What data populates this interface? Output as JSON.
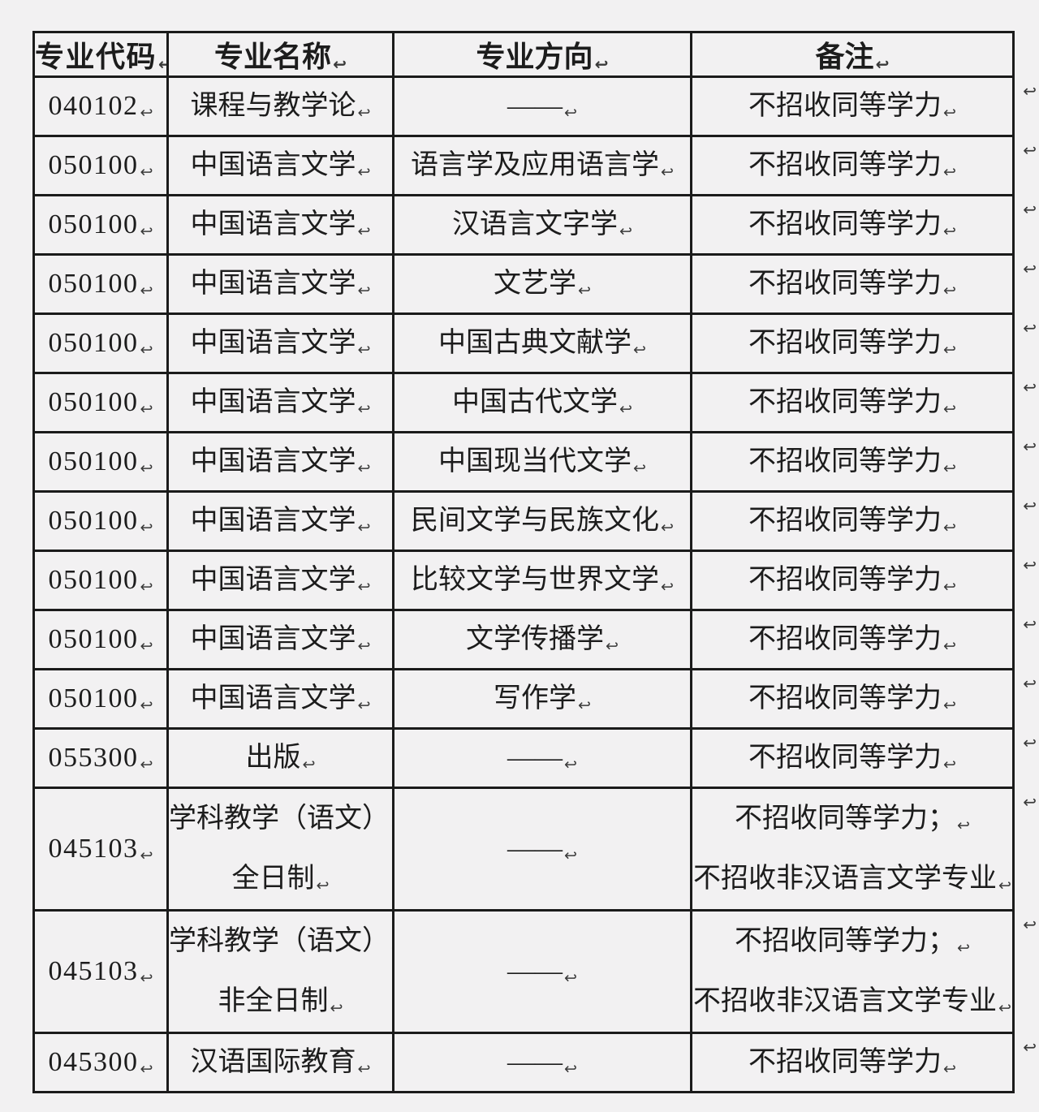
{
  "page": {
    "type": "word-document-table-screenshot",
    "colors": {
      "background": "#f2f1f2",
      "border": "#1b1b1b",
      "text": "#1c1c1c",
      "formatting_mark": "#3a3a3a"
    }
  },
  "table": {
    "paragraph_mark": "↩",
    "headers": {
      "code": "专业代码",
      "name": "专业名称",
      "direction": "专业方向",
      "remark": "备注"
    },
    "empty_direction": "——",
    "rows": [
      {
        "code": "040102",
        "name": [
          "课程与教学论"
        ],
        "direction": [
          "——"
        ],
        "remark": [
          "不招收同等学力"
        ]
      },
      {
        "code": "050100",
        "name": [
          "中国语言文学"
        ],
        "direction": [
          "语言学及应用语言学"
        ],
        "remark": [
          "不招收同等学力"
        ]
      },
      {
        "code": "050100",
        "name": [
          "中国语言文学"
        ],
        "direction": [
          "汉语言文字学"
        ],
        "remark": [
          "不招收同等学力"
        ]
      },
      {
        "code": "050100",
        "name": [
          "中国语言文学"
        ],
        "direction": [
          "文艺学"
        ],
        "remark": [
          "不招收同等学力"
        ]
      },
      {
        "code": "050100",
        "name": [
          "中国语言文学"
        ],
        "direction": [
          "中国古典文献学"
        ],
        "remark": [
          "不招收同等学力"
        ]
      },
      {
        "code": "050100",
        "name": [
          "中国语言文学"
        ],
        "direction": [
          "中国古代文学"
        ],
        "remark": [
          "不招收同等学力"
        ]
      },
      {
        "code": "050100",
        "name": [
          "中国语言文学"
        ],
        "direction": [
          "中国现当代文学"
        ],
        "remark": [
          "不招收同等学力"
        ]
      },
      {
        "code": "050100",
        "name": [
          "中国语言文学"
        ],
        "direction": [
          "民间文学与民族文化"
        ],
        "remark": [
          "不招收同等学力"
        ]
      },
      {
        "code": "050100",
        "name": [
          "中国语言文学"
        ],
        "direction": [
          "比较文学与世界文学"
        ],
        "remark": [
          "不招收同等学力"
        ]
      },
      {
        "code": "050100",
        "name": [
          "中国语言文学"
        ],
        "direction": [
          "文学传播学"
        ],
        "remark": [
          "不招收同等学力"
        ]
      },
      {
        "code": "050100",
        "name": [
          "中国语言文学"
        ],
        "direction": [
          "写作学"
        ],
        "remark": [
          "不招收同等学力"
        ]
      },
      {
        "code": "055300",
        "name": [
          "出版"
        ],
        "direction": [
          "——"
        ],
        "remark": [
          "不招收同等学力"
        ]
      },
      {
        "code": "045103",
        "name": [
          "学科教学（语文）",
          "全日制"
        ],
        "direction": [
          "——"
        ],
        "remark": [
          "不招收同等学力；",
          "不招收非汉语言文学专业"
        ]
      },
      {
        "code": "045103",
        "name": [
          "学科教学（语文）",
          "非全日制"
        ],
        "direction": [
          "——"
        ],
        "remark": [
          "不招收同等学力；",
          "不招收非汉语言文学专业"
        ]
      },
      {
        "code": "045300",
        "name": [
          "汉语国际教育"
        ],
        "direction": [
          "——"
        ],
        "remark": [
          "不招收同等学力"
        ]
      }
    ]
  }
}
